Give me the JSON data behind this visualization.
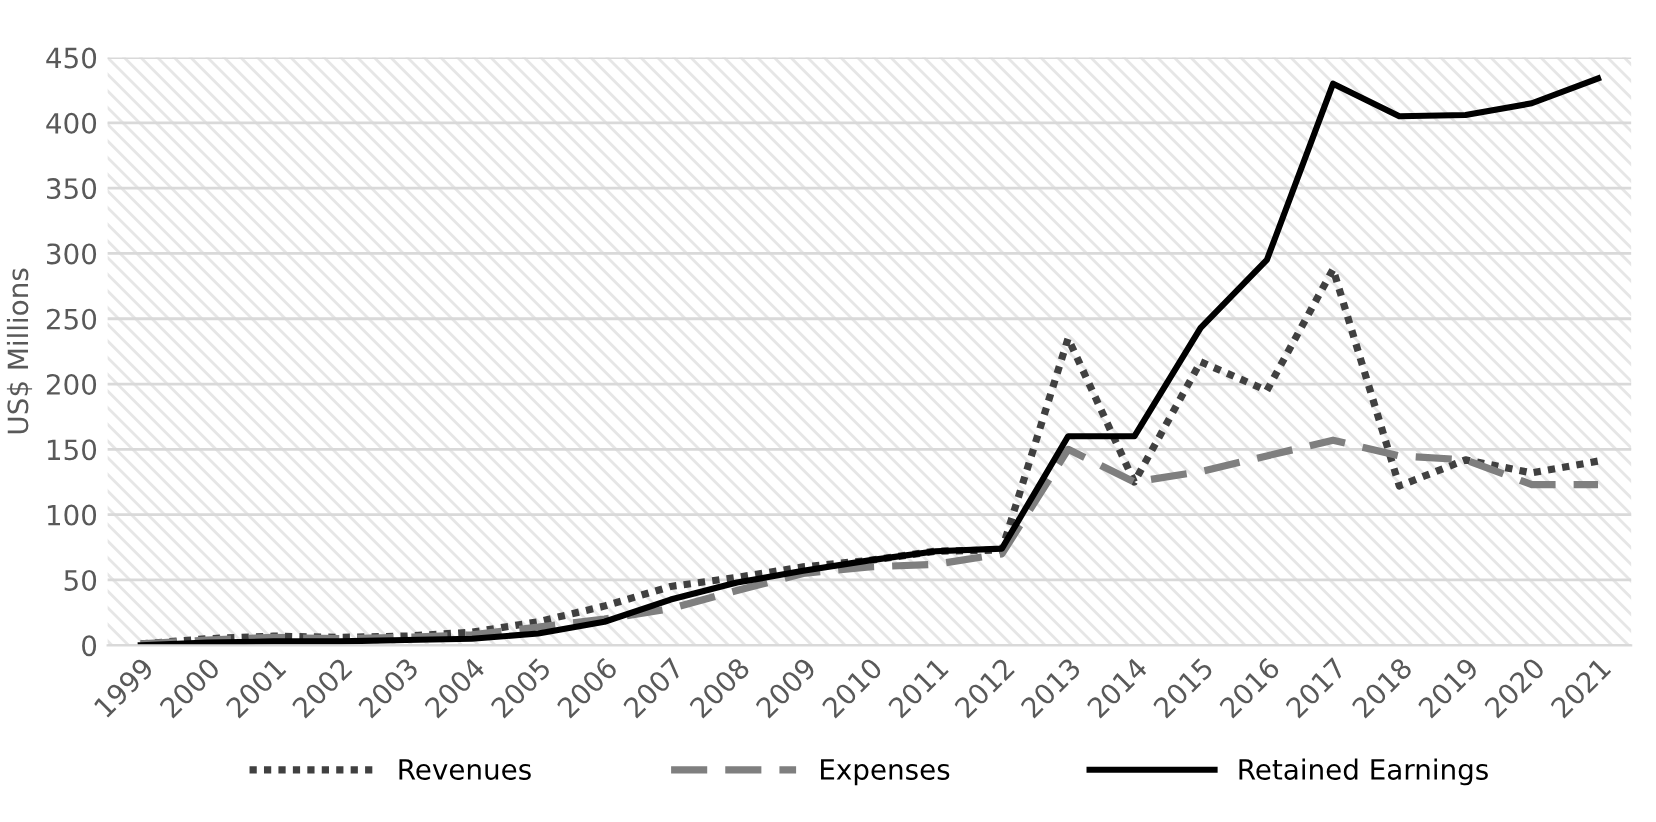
{
  "chart_data": {
    "type": "line",
    "ylabel": "US$ Millions",
    "categories": [
      "1999",
      "2000",
      "2001",
      "2002",
      "2003",
      "2004",
      "2005",
      "2006",
      "2007",
      "2008",
      "2009",
      "2010",
      "2011",
      "2012",
      "2013",
      "2014",
      "2015",
      "2016",
      "2017",
      "2018",
      "2019",
      "2020",
      "2021"
    ],
    "series": [
      {
        "name": "Revenues",
        "color": "#404040",
        "line_style": "dotted",
        "values": [
          1,
          5,
          7,
          6,
          7,
          10,
          18,
          30,
          45,
          52,
          60,
          65,
          72,
          73,
          235,
          125,
          217,
          195,
          288,
          122,
          142,
          132,
          141
        ]
      },
      {
        "name": "Expenses",
        "color": "#7f7f7f",
        "line_style": "dashed",
        "values": [
          1,
          4,
          6,
          5,
          6,
          8,
          14,
          20,
          28,
          42,
          55,
          60,
          62,
          70,
          150,
          125,
          133,
          145,
          157,
          145,
          142,
          123,
          123
        ]
      },
      {
        "name": "Retained Earnings",
        "color": "#000000",
        "line_style": "solid",
        "values": [
          0,
          2,
          3,
          3,
          4,
          5,
          9,
          18,
          35,
          48,
          57,
          65,
          72,
          74,
          160,
          160,
          243,
          295,
          430,
          405,
          406,
          415,
          434
        ]
      }
    ],
    "ylim": [
      0,
      450
    ],
    "yticks": [
      0,
      50,
      100,
      150,
      200,
      250,
      300,
      350,
      400,
      450
    ],
    "grid": "y",
    "legend": "bottom",
    "marker": "none"
  }
}
